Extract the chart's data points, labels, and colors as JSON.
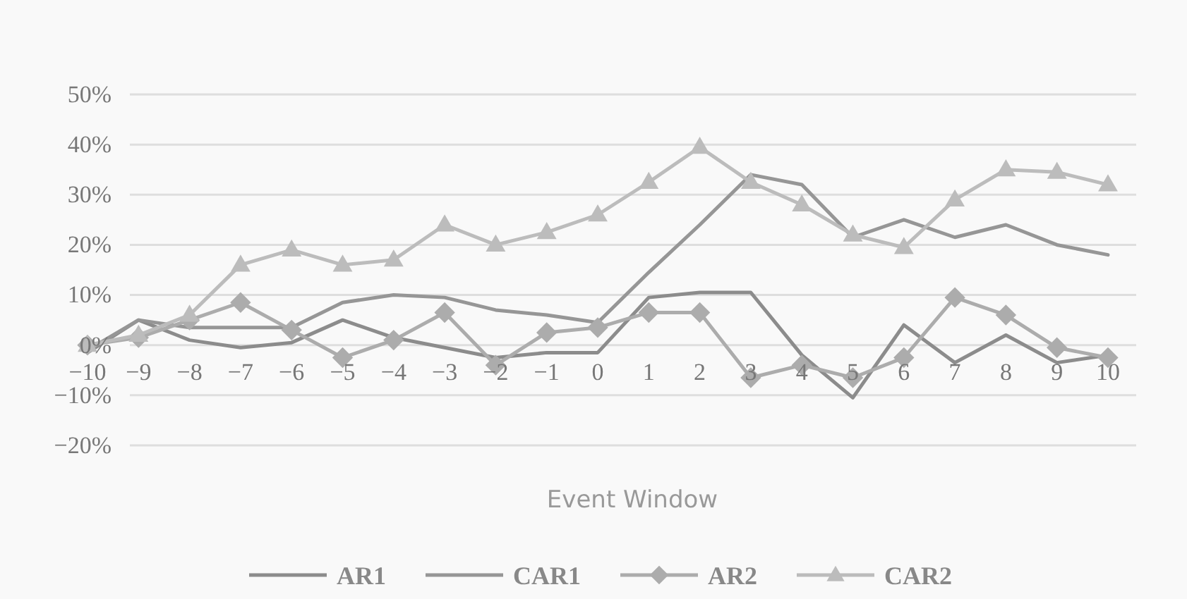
{
  "chart_data": {
    "type": "line",
    "xlabel": "Event Window",
    "categories": [
      "−10",
      "−9",
      "−8",
      "−7",
      "−6",
      "−5",
      "−4",
      "−3",
      "−2",
      "−1",
      "0",
      "1",
      "2",
      "3",
      "4",
      "5",
      "6",
      "7",
      "8",
      "9",
      "10"
    ],
    "series": [
      {
        "name": "AR1",
        "color": "#8c8c8c",
        "marker": "none",
        "values": [
          -1.5,
          5,
          1,
          -0.5,
          0.5,
          5,
          1.5,
          -0.5,
          -2.5,
          -1.5,
          -1.5,
          9.5,
          10.5,
          10.5,
          -2,
          -10.5,
          4,
          -3.5,
          2,
          -3.5,
          -2
        ]
      },
      {
        "name": "CAR1",
        "color": "#969696",
        "marker": "none",
        "values": [
          -1,
          5,
          3.5,
          3.5,
          3.5,
          8.5,
          10,
          9.5,
          7,
          6,
          4.5,
          14.5,
          24,
          34,
          32,
          21.5,
          25,
          21.5,
          24,
          20,
          18
        ]
      },
      {
        "name": "AR2",
        "color": "#acacac",
        "marker": "diamond",
        "values": [
          0,
          1.5,
          5,
          8.5,
          3,
          -2.5,
          1,
          6.5,
          -4,
          2.5,
          3.5,
          6.5,
          6.5,
          -6.5,
          -4,
          -6.5,
          -2.5,
          9.5,
          6,
          -0.5,
          -2.5
        ]
      },
      {
        "name": "CAR2",
        "color": "#bcbcbc",
        "marker": "triangle",
        "values": [
          0,
          2,
          6,
          16,
          19,
          16,
          17,
          24,
          20,
          22.5,
          26,
          32.5,
          39.5,
          32.5,
          28,
          22,
          19.5,
          29,
          35,
          34.5,
          32
        ]
      }
    ],
    "ylim": [
      -20,
      50
    ],
    "yticks": [
      {
        "value": -20,
        "label": "−20%"
      },
      {
        "value": -10,
        "label": "−10%"
      },
      {
        "value": 0,
        "label": "0%"
      },
      {
        "value": 10,
        "label": "10%"
      },
      {
        "value": 20,
        "label": "20%"
      },
      {
        "value": 30,
        "label": "30%"
      },
      {
        "value": 40,
        "label": "40%"
      },
      {
        "value": 50,
        "label": "50%"
      }
    ],
    "grid": "y",
    "legend": "bottom",
    "line_style": "solid"
  }
}
